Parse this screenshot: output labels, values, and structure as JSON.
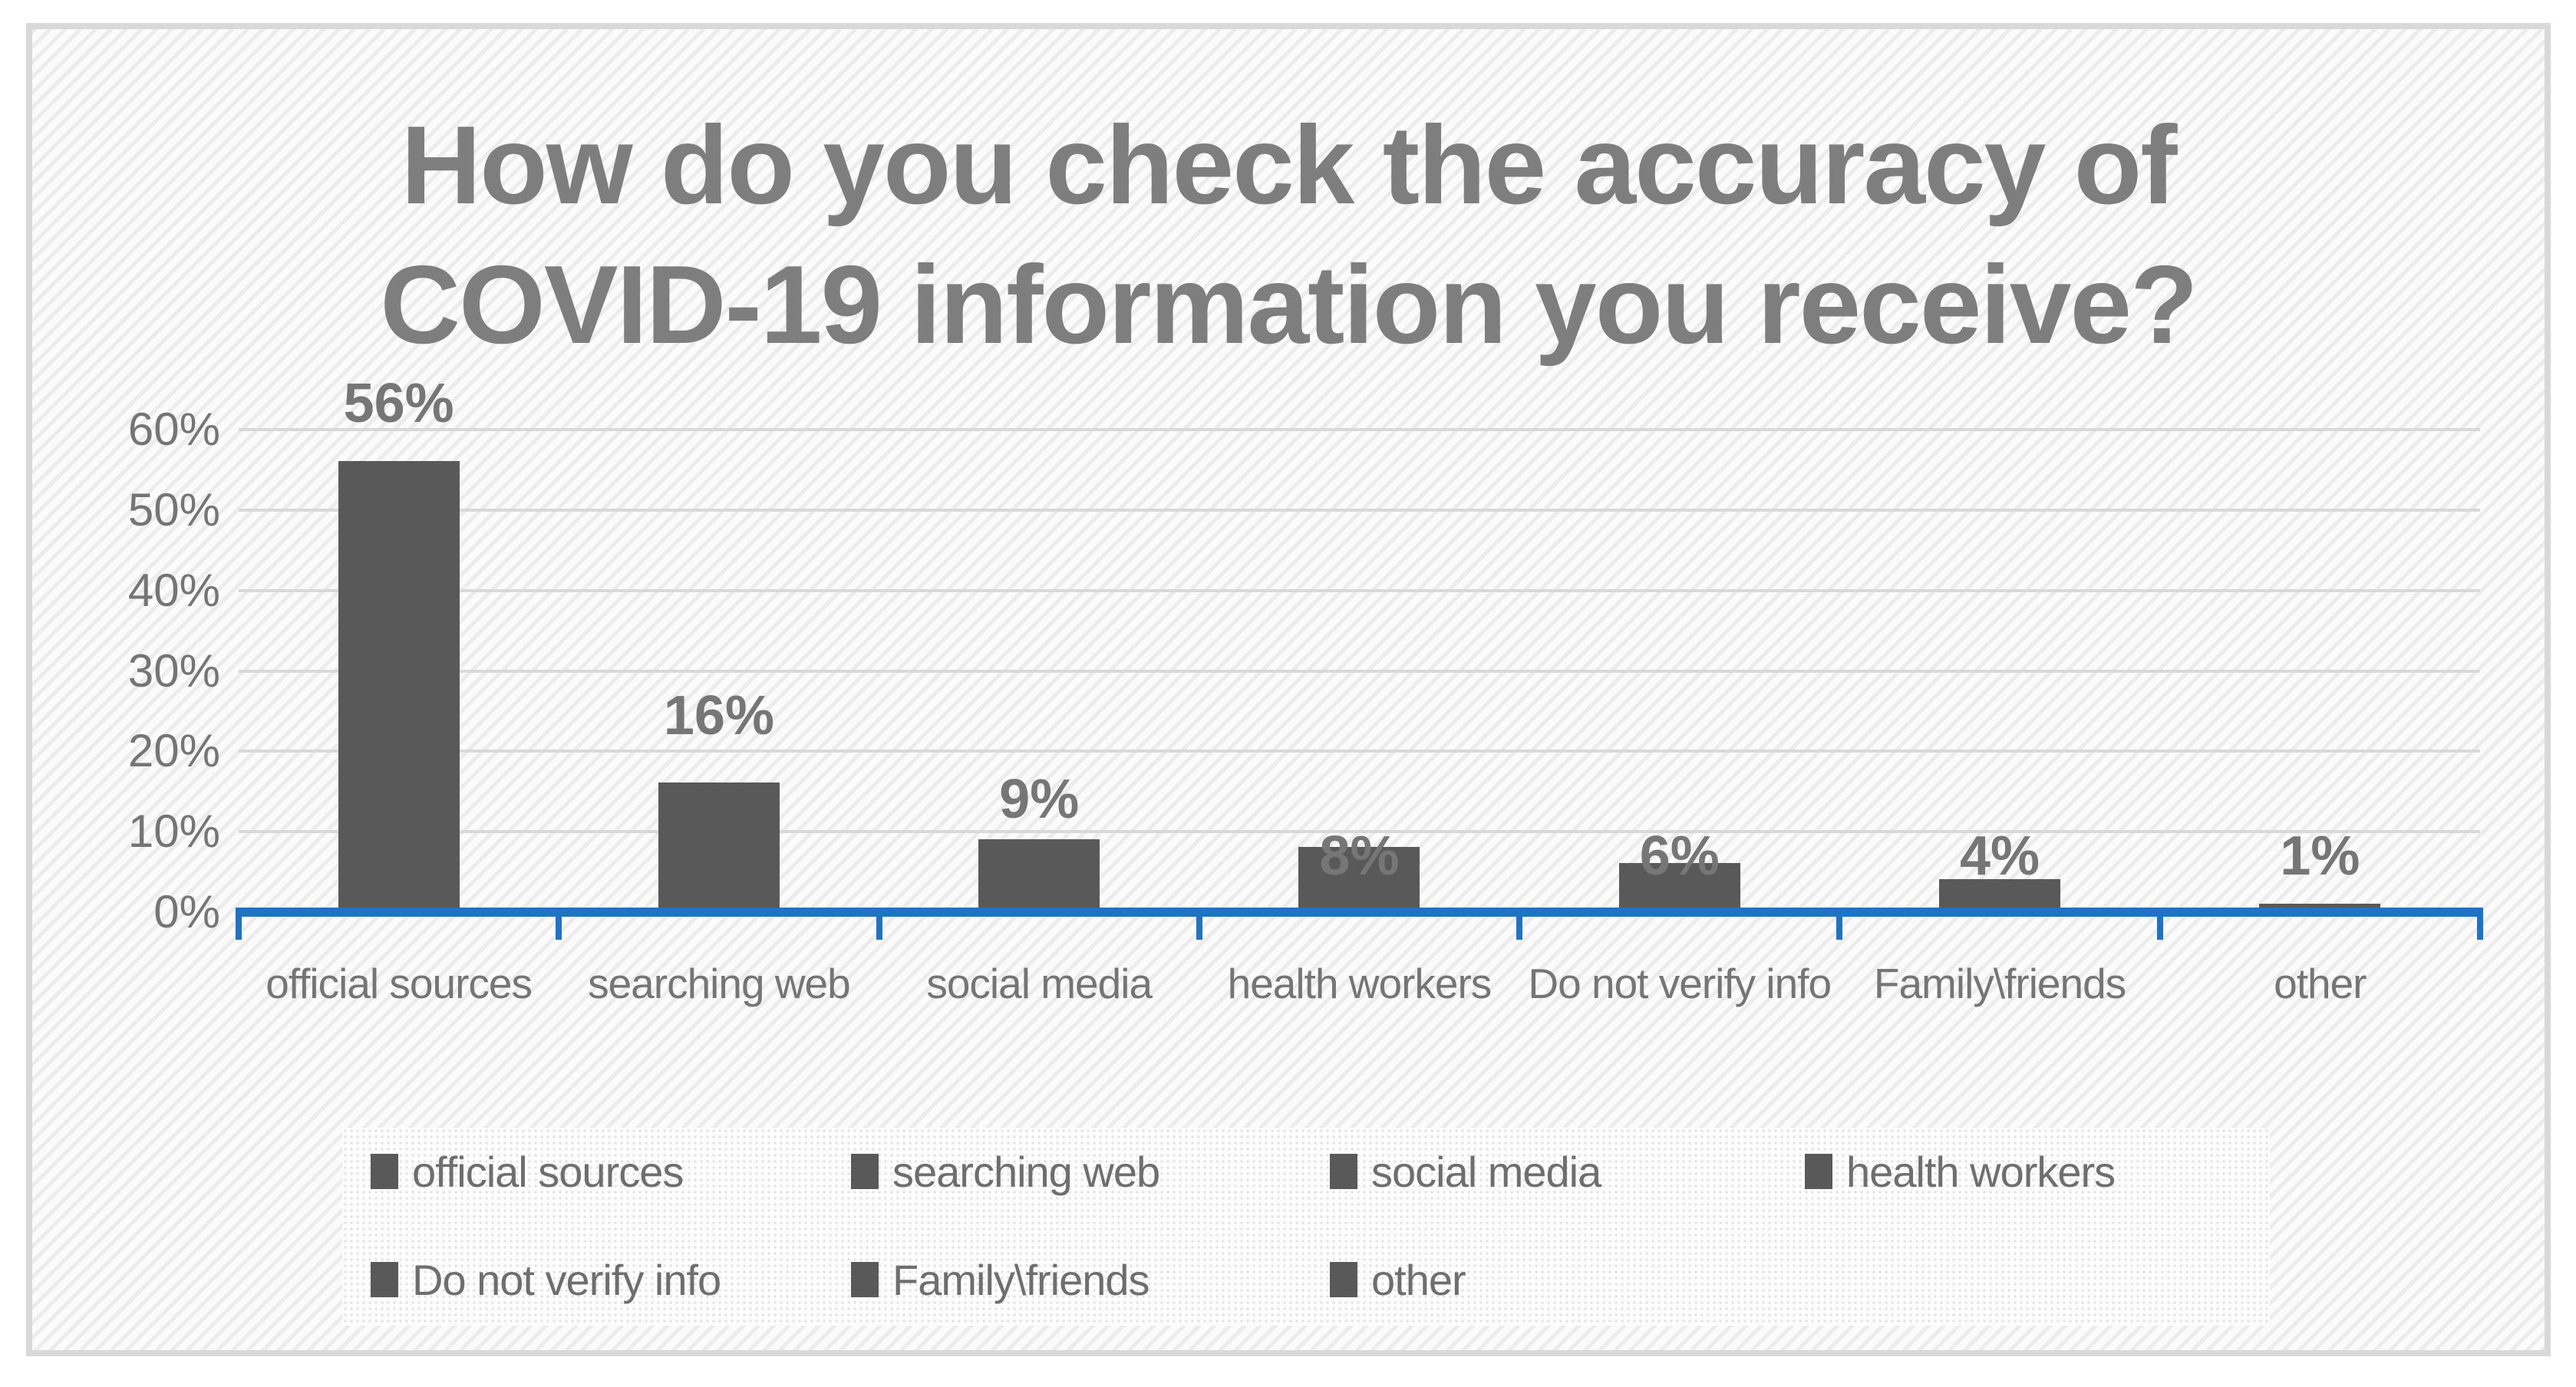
{
  "chart_data": {
    "type": "bar",
    "title": "How do you check the accuracy of COVID-19 information you receive?",
    "categories": [
      "official sources",
      "searching web",
      "social media",
      "health workers",
      "Do not verify info",
      "Family\\friends",
      "other"
    ],
    "values": [
      56,
      16,
      9,
      8,
      6,
      4,
      1
    ],
    "data_labels": [
      "56%",
      "16%",
      "9%",
      "8%",
      "6%",
      "4%",
      "1%"
    ],
    "ytick_labels": [
      "0%",
      "10%",
      "20%",
      "30%",
      "40%",
      "50%",
      "60%"
    ],
    "ylim": [
      0,
      60
    ],
    "ytick_step": 10,
    "grid": true,
    "legend_position": "bottom",
    "legend_rows": [
      [
        "official sources",
        "searching web",
        "social media",
        "health workers"
      ],
      [
        "Do not verify info",
        "Family\\friends",
        "other"
      ]
    ],
    "colors": {
      "bar": "#595959",
      "axis_line": "#1E73C6",
      "gridline": "#D9D9D9",
      "frame_border": "#D9D9D9",
      "title_text": "#7E7E7E",
      "axis_label_text": "#757575",
      "data_label_text": "#767676",
      "legend_text": "#6E6E6E"
    }
  }
}
